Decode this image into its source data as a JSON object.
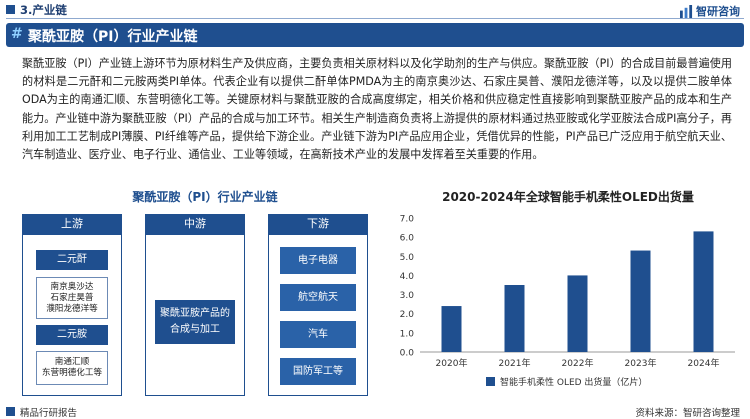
{
  "header": {
    "section": "3.产业链",
    "brand": "智研咨询"
  },
  "title": "聚酰亚胺（PI）行业产业链",
  "paragraph": "聚酰亚胺（PI）产业链上游环节为原材料生产及供应商，主要负责相关原材料以及化学助剂的生产与供应。聚酰亚胺（PI）的合成目前最普遍使用的材料是二元酐和二元胺两类PI单体。代表企业有以提供二酐单体PMDA为主的南京奥沙达、石家庄昊普、濮阳龙德洋等，以及以提供二胺单体ODA为主的南通汇顺、东营明德化工等。关键原材料与聚酰亚胺的合成高度绑定，相关价格和供应稳定性直接影响到聚酰亚胺产品的成本和生产能力。产业链中游为聚酰亚胺（PI）产品的合成与加工环节。相关生产制造商负责将上游提供的原材料通过热亚胺或化学亚胺法合成PI高分子，再利用加工工艺制成PI薄膜、PI纤维等产品，提供给下游企业。产业链下游为PI产品应用企业，凭借优异的性能，PI产品已广泛应用于航空航天业、汽车制造业、医疗业、电子行业、通信业、工业等领域，在高新技术产业的发展中发挥着至关重要的作用。",
  "diagram": {
    "title": "聚酰亚胺（PI）行业产业链",
    "upstream": {
      "label": "上游",
      "groups": [
        {
          "label": "二元酐",
          "companies": [
            "南京奥沙达",
            "石家庄昊普",
            "濮阳龙德洋等"
          ]
        },
        {
          "label": "二元胺",
          "companies": [
            "南通汇顺",
            "东营明德化工等"
          ]
        }
      ]
    },
    "midstream": {
      "label": "中游",
      "lines": [
        "聚酰亚胺产品的",
        "合成与加工"
      ]
    },
    "downstream": {
      "label": "下游",
      "items": [
        "电子电器",
        "航空航天",
        "汽车",
        "国防军工等"
      ]
    }
  },
  "chart_data": {
    "type": "bar",
    "title": "2020-2024年全球智能手机柔性OLED出货量",
    "categories": [
      "2020年",
      "2021年",
      "2022年",
      "2023年",
      "2024年"
    ],
    "values": [
      2.4,
      3.5,
      4.0,
      5.3,
      6.3
    ],
    "ylim": [
      0,
      7.0
    ],
    "yticks": [
      "0.0",
      "1.0",
      "2.0",
      "3.0",
      "4.0",
      "5.0",
      "6.0",
      "7.0"
    ],
    "legend": "智能手机柔性 OLED 出货量（亿片）",
    "bar_color": "#1f4f8f"
  },
  "footer": {
    "left": "精品行研报告",
    "right": "资料来源：智研咨询整理"
  }
}
